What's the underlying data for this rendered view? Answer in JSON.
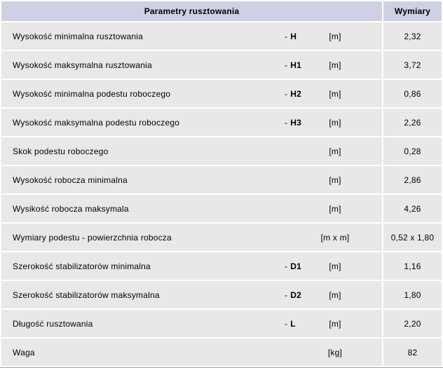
{
  "table": {
    "header": {
      "params": "Parametry rusztowania",
      "dims": "Wymiary"
    },
    "rows": [
      {
        "label": "Wysokość minimalna rusztowania",
        "symbol_prefix": "-",
        "symbol": "H",
        "unit": "[m]",
        "value": "2,32"
      },
      {
        "label": "Wysokość maksymalna rusztowania",
        "symbol_prefix": "-",
        "symbol": "H1",
        "unit": "[m]",
        "value": "3,72"
      },
      {
        "label": "Wysokość minimalna podestu roboczego",
        "symbol_prefix": "-",
        "symbol": "H2",
        "unit": "[m]",
        "value": "0,86"
      },
      {
        "label": "Wysokość maksymalna podestu roboczego",
        "symbol_prefix": "-",
        "symbol": "H3",
        "unit": "[m]",
        "value": "2,26"
      },
      {
        "label": "Skok podestu roboczego",
        "symbol_prefix": "",
        "symbol": "",
        "unit": "[m]",
        "value": "0,28"
      },
      {
        "label": "Wysokość robocza minimalna",
        "symbol_prefix": "",
        "symbol": "",
        "unit": "[m]",
        "value": "2,86"
      },
      {
        "label": "Wysikość robocza maksymala",
        "symbol_prefix": "",
        "symbol": "",
        "unit": "[m]",
        "value": "4,26"
      },
      {
        "label": "Wymiary podestu - powierzchnia robocza",
        "symbol_prefix": "",
        "symbol": "",
        "unit": "[m x m]",
        "value": "0,52 x 1,80"
      },
      {
        "label": "Szerokość stabilizatorów minimalna",
        "symbol_prefix": "-",
        "symbol": "D1",
        "unit": "[m]",
        "value": "1,16"
      },
      {
        "label": "Szerokość stabilizatorów maksymalna",
        "symbol_prefix": "-",
        "symbol": "D2",
        "unit": "[m]",
        "value": "1,80"
      },
      {
        "label": "Długość rusztowania",
        "symbol_prefix": "-",
        "symbol": "L",
        "unit": "[m]",
        "value": "2,20"
      },
      {
        "label": "Waga",
        "symbol_prefix": "",
        "symbol": "",
        "unit": "[kg]",
        "value": "82"
      }
    ],
    "colors": {
      "header_bg": "#cdd1e3",
      "row_bg": "#e8e8e8",
      "separator": "#ffffff",
      "bottom_border": "#9a9a9a",
      "text": "#000000"
    }
  }
}
